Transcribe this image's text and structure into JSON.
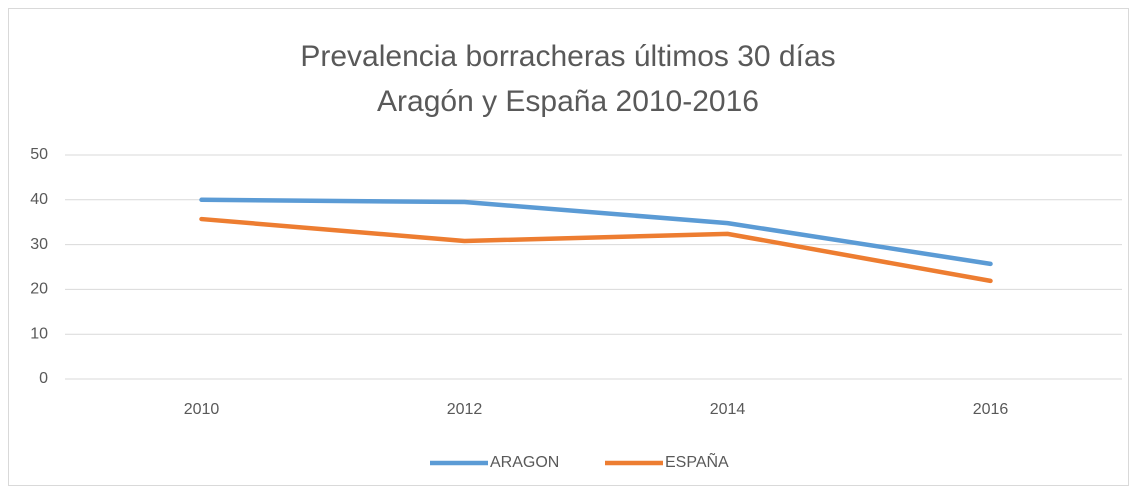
{
  "chart_data": {
    "type": "line",
    "title": [
      "Prevalencia borracheras últimos 30 días",
      "Aragón y España 2010-2016"
    ],
    "categories": [
      "2010",
      "2012",
      "2014",
      "2016"
    ],
    "series": [
      {
        "name": "ARAGON",
        "color": "#5b9bd5",
        "values": [
          40,
          39.5,
          34.8,
          25.7
        ]
      },
      {
        "name": "ESPAÑA",
        "color": "#ed7d31",
        "values": [
          35.7,
          30.8,
          32.4,
          21.9
        ]
      }
    ],
    "ylim": [
      0,
      50
    ],
    "yticks": [
      0,
      10,
      20,
      30,
      40,
      50
    ],
    "grid": true,
    "legend": "bottom"
  }
}
